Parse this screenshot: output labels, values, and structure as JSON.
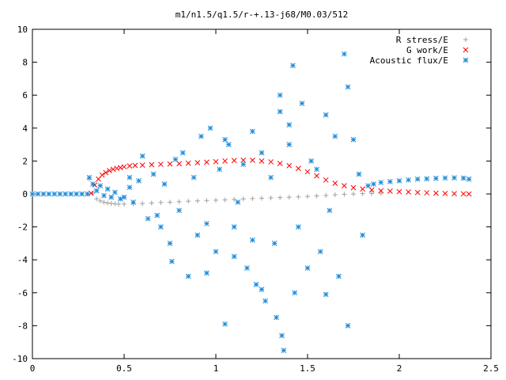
{
  "chart_data": {
    "type": "scatter",
    "title": "m1/n1.5/q1.5/r-+.13-j68/M0.03/512",
    "xlabel": "",
    "ylabel": "",
    "xlim": [
      0,
      2.5
    ],
    "ylim": [
      -10,
      10
    ],
    "x_ticks": [
      0,
      0.5,
      1,
      1.5,
      2,
      2.5
    ],
    "x_tick_labels": [
      "0",
      "0.5",
      "1",
      "1.5",
      "2",
      "2.5"
    ],
    "y_ticks": [
      -10,
      -8,
      -6,
      -4,
      -2,
      0,
      2,
      4,
      6,
      8,
      10
    ],
    "y_tick_labels": [
      "-10",
      "-8",
      "-6",
      "-4",
      "-2",
      "0",
      "2",
      "4",
      "6",
      "8",
      "10"
    ],
    "grid": false,
    "legend_position": "top-right",
    "series": [
      {
        "name": "R stress/E",
        "marker": "+",
        "color": "#a0a0a0",
        "x": [
          0.31,
          0.33,
          0.35,
          0.37,
          0.39,
          0.41,
          0.43,
          0.45,
          0.47,
          0.5,
          0.55,
          0.6,
          0.65,
          0.7,
          0.75,
          0.8,
          0.85,
          0.9,
          0.95,
          1.0,
          1.05,
          1.1,
          1.15,
          1.2,
          1.25,
          1.3,
          1.35,
          1.4,
          1.45,
          1.5,
          1.55,
          1.6,
          1.65,
          1.7,
          1.75,
          1.8,
          1.85,
          1.9
        ],
        "y": [
          0.9,
          0.05,
          -0.3,
          -0.42,
          -0.5,
          -0.55,
          -0.58,
          -0.6,
          -0.62,
          -0.62,
          -0.6,
          -0.58,
          -0.55,
          -0.52,
          -0.5,
          -0.47,
          -0.44,
          -0.42,
          -0.4,
          -0.38,
          -0.36,
          -0.33,
          -0.3,
          -0.28,
          -0.26,
          -0.24,
          -0.22,
          -0.2,
          -0.18,
          -0.15,
          -0.12,
          -0.09,
          -0.05,
          -0.02,
          0.0,
          0.02,
          0.03,
          0.04
        ]
      },
      {
        "name": "G work/E",
        "marker": "x",
        "color": "#ff0000",
        "x": [
          0.32,
          0.34,
          0.36,
          0.38,
          0.4,
          0.42,
          0.44,
          0.46,
          0.48,
          0.5,
          0.53,
          0.56,
          0.6,
          0.65,
          0.7,
          0.75,
          0.8,
          0.85,
          0.9,
          0.95,
          1.0,
          1.05,
          1.1,
          1.15,
          1.2,
          1.25,
          1.3,
          1.35,
          1.4,
          1.45,
          1.5,
          1.55,
          1.6,
          1.65,
          1.7,
          1.75,
          1.8,
          1.85,
          1.9,
          1.95,
          2.0,
          2.05,
          2.1,
          2.15,
          2.2,
          2.25,
          2.3,
          2.35,
          2.38
        ],
        "y": [
          0.05,
          0.55,
          0.9,
          1.15,
          1.3,
          1.42,
          1.5,
          1.56,
          1.6,
          1.65,
          1.7,
          1.73,
          1.75,
          1.78,
          1.8,
          1.82,
          1.84,
          1.87,
          1.9,
          1.93,
          1.96,
          2.0,
          2.03,
          2.05,
          2.05,
          2.0,
          1.95,
          1.85,
          1.72,
          1.55,
          1.35,
          1.1,
          0.85,
          0.65,
          0.5,
          0.38,
          0.3,
          0.24,
          0.2,
          0.17,
          0.14,
          0.12,
          0.09,
          0.07,
          0.05,
          0.03,
          0.02,
          0.01,
          0.0
        ]
      },
      {
        "name": "Acoustic flux/E",
        "marker": "*",
        "color": "#1c8ad8",
        "x": [
          0.0,
          0.03,
          0.06,
          0.09,
          0.12,
          0.15,
          0.18,
          0.21,
          0.24,
          0.27,
          0.3,
          0.31,
          0.33,
          0.35,
          0.37,
          0.39,
          0.41,
          0.43,
          0.45,
          0.48,
          0.5,
          0.53,
          0.55,
          0.58,
          0.6,
          0.63,
          0.66,
          0.7,
          0.72,
          0.75,
          0.78,
          0.8,
          0.82,
          0.85,
          0.88,
          0.9,
          0.92,
          0.95,
          0.97,
          1.0,
          1.02,
          1.05,
          1.07,
          1.1,
          1.12,
          1.15,
          1.17,
          1.2,
          1.22,
          1.25,
          1.27,
          1.3,
          1.32,
          1.35,
          1.37,
          1.4,
          1.42,
          1.45,
          1.47,
          1.5,
          1.52,
          1.55,
          1.57,
          1.6,
          1.62,
          1.65,
          1.67,
          1.7,
          1.72,
          1.75,
          1.78,
          1.8,
          1.83,
          1.86,
          1.9,
          1.95,
          2.0,
          2.05,
          2.1,
          2.15,
          2.2,
          2.25,
          2.3,
          2.35,
          2.38,
          0.95,
          1.05,
          1.2,
          1.35,
          1.43,
          1.72,
          1.6,
          1.33,
          1.25,
          1.36,
          1.4,
          0.68,
          0.53,
          0.76,
          1.1
        ],
        "y": [
          0.0,
          0.0,
          0.0,
          0.0,
          0.0,
          0.0,
          0.0,
          0.0,
          0.0,
          0.0,
          0.0,
          1.0,
          0.6,
          0.2,
          0.5,
          -0.1,
          0.3,
          -0.2,
          0.1,
          -0.3,
          -0.2,
          0.4,
          -0.5,
          0.8,
          2.3,
          -1.5,
          1.2,
          -2.0,
          0.6,
          -3.0,
          2.1,
          -1.0,
          2.5,
          -5.0,
          1.0,
          -2.5,
          3.5,
          -1.8,
          4.0,
          -3.5,
          1.5,
          -7.9,
          3.0,
          -2.0,
          -0.5,
          1.8,
          -4.5,
          3.8,
          -5.5,
          2.5,
          -6.5,
          1.0,
          -3.0,
          6.0,
          -9.5,
          3.0,
          7.8,
          -2.0,
          5.5,
          -4.5,
          2.0,
          1.5,
          -3.5,
          4.8,
          -1.0,
          3.5,
          -5.0,
          8.5,
          -8.0,
          3.3,
          1.2,
          -2.5,
          0.5,
          0.6,
          0.7,
          0.75,
          0.8,
          0.85,
          0.9,
          0.92,
          0.95,
          0.97,
          0.98,
          0.96,
          0.9,
          -4.8,
          3.3,
          -2.8,
          5.0,
          -6.0,
          6.5,
          -6.1,
          -7.5,
          -5.8,
          -8.6,
          4.2,
          -1.3,
          1.0,
          -4.1,
          -3.8
        ]
      }
    ]
  }
}
